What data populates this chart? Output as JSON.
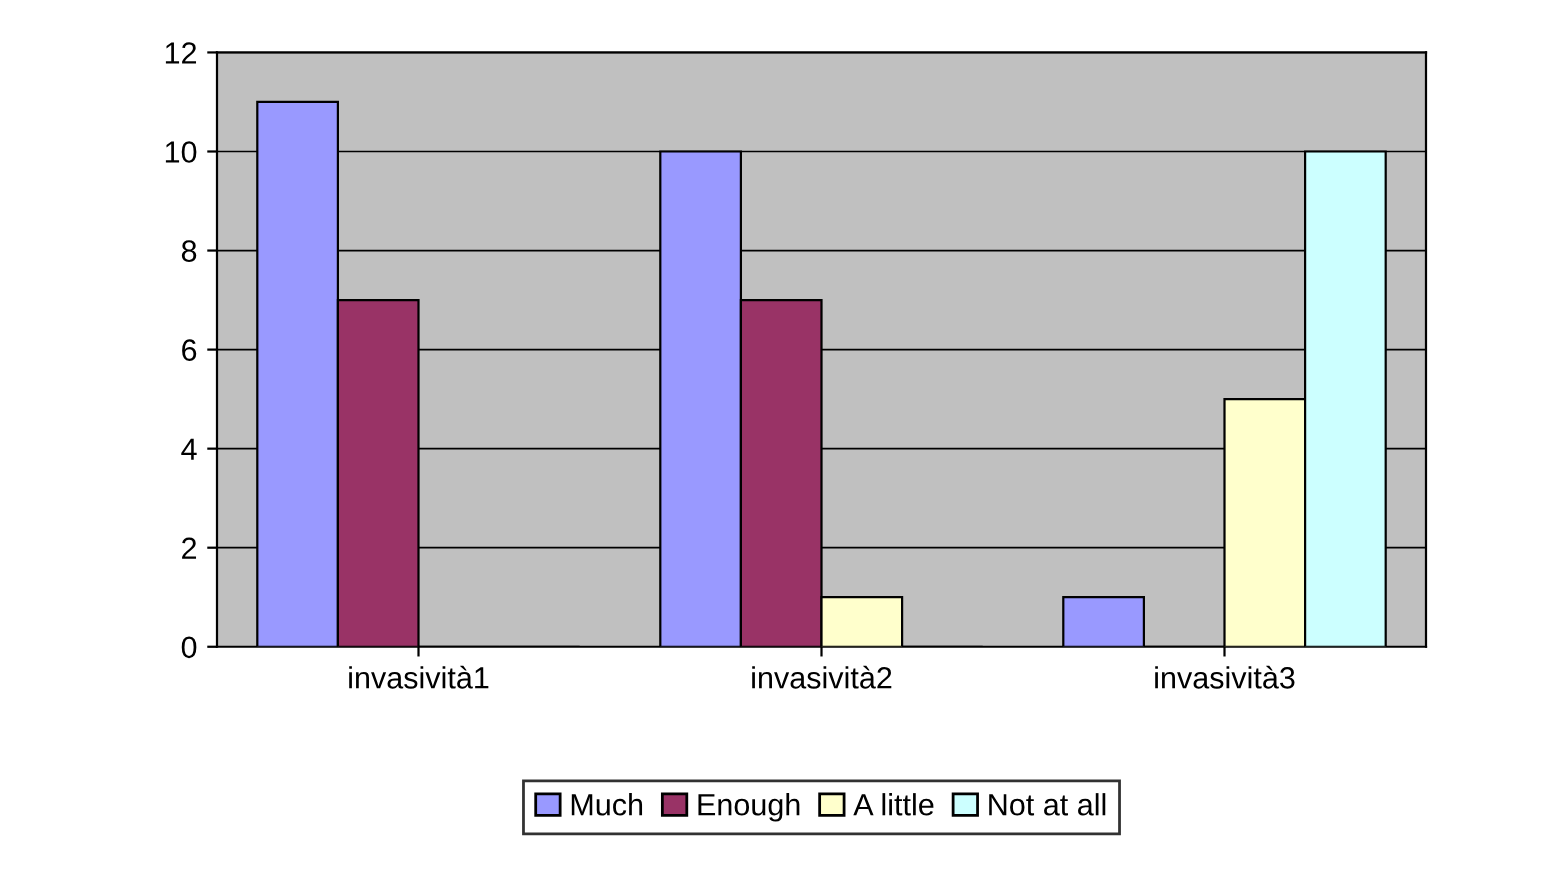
{
  "chart_data": {
    "type": "bar",
    "categories": [
      "invasività1",
      "invasività2",
      "invasività3"
    ],
    "series": [
      {
        "name": "Much",
        "color": "#9999ff",
        "values": [
          11,
          10,
          1
        ]
      },
      {
        "name": "Enough",
        "color": "#993366",
        "values": [
          7,
          7,
          0
        ]
      },
      {
        "name": "A little",
        "color": "#ffffcc",
        "values": [
          0,
          1,
          5
        ]
      },
      {
        "name": "Not at all",
        "color": "#ccffff",
        "values": [
          0,
          0,
          10
        ]
      }
    ],
    "ylim": [
      0,
      12
    ],
    "yticks": [
      0,
      2,
      4,
      6,
      8,
      10,
      12
    ],
    "grid": "y",
    "legend": "bottom"
  }
}
